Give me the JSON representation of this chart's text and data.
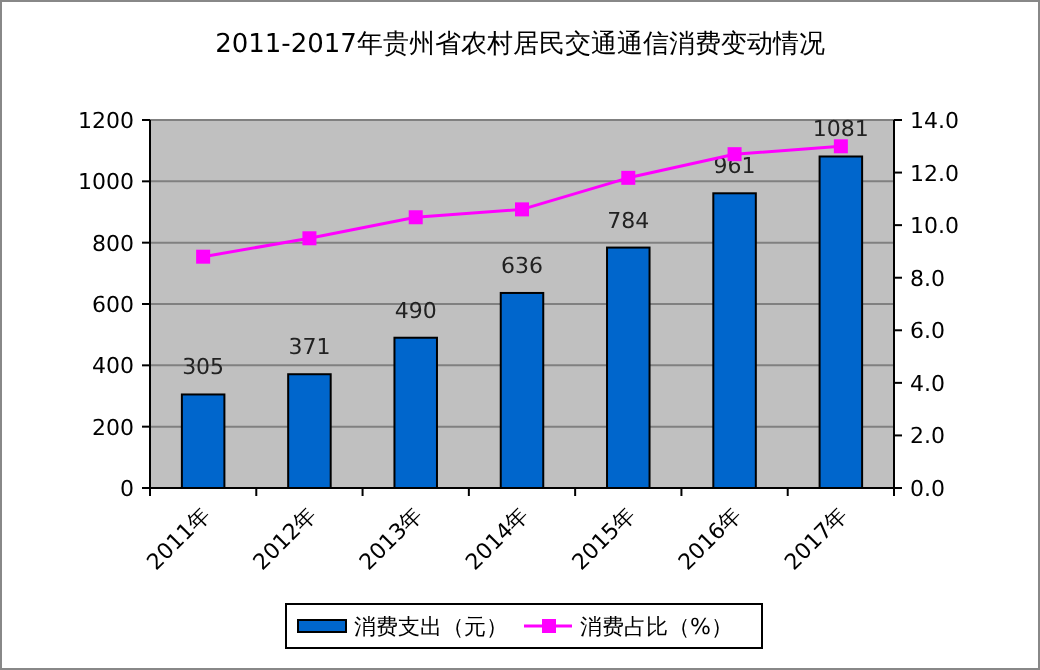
{
  "chart_data": {
    "type": "bar",
    "title": "2011-2017年贵州省农村居民交通通信消费变动情况",
    "categories": [
      "2011年",
      "2012年",
      "2013年",
      "2014年",
      "2015年",
      "2016年",
      "2017年"
    ],
    "series": [
      {
        "name": "消费支出（元）",
        "color": "#0066cc",
        "values": [
          305,
          371,
          490,
          636,
          784,
          961,
          1081
        ],
        "value_labels": [
          "305",
          "371",
          "490",
          "636",
          "784",
          "961",
          "1081"
        ]
      },
      {
        "name": "消费占比（%）",
        "type": "line",
        "axis": "y2",
        "color": "#ff00ff",
        "marker": "square",
        "values": [
          8.8,
          9.5,
          10.3,
          10.6,
          11.8,
          12.7,
          13.0
        ]
      }
    ],
    "ylim": [
      0,
      1200
    ],
    "yticks": [
      0,
      200,
      400,
      600,
      800,
      1000,
      1200
    ],
    "y2lim": [
      0,
      14
    ],
    "y2ticks": [
      {
        "value": 0,
        "label": "0.0"
      },
      {
        "value": 2,
        "label": "2.0"
      },
      {
        "value": 4,
        "label": "4.0"
      },
      {
        "value": 6,
        "label": "6.0"
      },
      {
        "value": 8,
        "label": "8.0"
      },
      {
        "value": 10,
        "label": "10.0"
      },
      {
        "value": 12,
        "label": "12.0"
      },
      {
        "value": 14,
        "label": "14.0"
      }
    ],
    "grid": "y",
    "legend": "bottom"
  }
}
